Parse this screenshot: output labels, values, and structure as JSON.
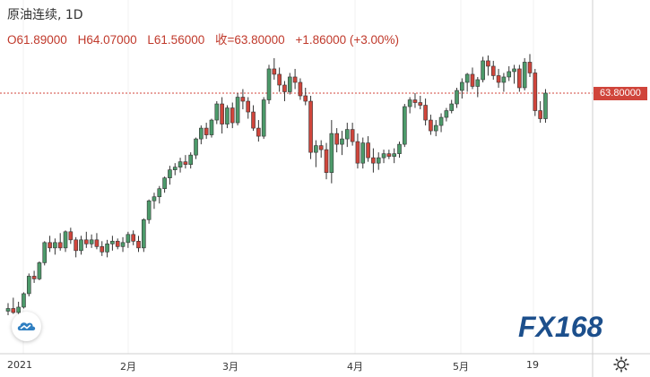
{
  "header": {
    "title": "原油连续, 1D",
    "open": "O61.89000",
    "high": "H64.07000",
    "low": "L61.56000",
    "close": "收=63.80000",
    "change": "+1.86000 (+3.00%)"
  },
  "price_tag": "63.80000",
  "logo_text": "FX168",
  "colors": {
    "up": "#4c9a6a",
    "down": "#d0453b",
    "price_line": "#d0453b"
  },
  "icons": {
    "settings": "gear-icon",
    "cloud": "cloud-icon"
  },
  "chart_data": {
    "type": "candlestick",
    "x_tick_labels": [
      "2021",
      "2月",
      "3月",
      "4月",
      "5月",
      "19"
    ],
    "last_price": 63.8,
    "ohlc": [
      [
        47.6,
        48.2,
        47.3,
        47.8
      ],
      [
        47.8,
        48.6,
        47.4,
        47.5
      ],
      [
        47.5,
        48.3,
        47.2,
        47.9
      ],
      [
        47.9,
        49.0,
        47.8,
        48.9
      ],
      [
        48.9,
        50.4,
        48.7,
        50.2
      ],
      [
        50.2,
        50.6,
        49.7,
        50.0
      ],
      [
        50.0,
        51.3,
        49.9,
        51.2
      ],
      [
        51.2,
        52.8,
        51.0,
        52.7
      ],
      [
        52.7,
        53.2,
        52.0,
        52.3
      ],
      [
        52.3,
        53.0,
        51.8,
        52.7
      ],
      [
        52.7,
        53.4,
        52.1,
        52.3
      ],
      [
        52.3,
        53.6,
        52.0,
        53.5
      ],
      [
        53.5,
        53.8,
        52.6,
        52.9
      ],
      [
        52.9,
        53.1,
        51.6,
        52.1
      ],
      [
        52.1,
        53.2,
        51.8,
        52.9
      ],
      [
        52.9,
        53.5,
        52.3,
        52.6
      ],
      [
        52.6,
        53.3,
        52.3,
        52.9
      ],
      [
        52.9,
        53.4,
        52.2,
        52.4
      ],
      [
        52.4,
        52.8,
        51.7,
        52.0
      ],
      [
        52.0,
        52.9,
        51.6,
        52.6
      ],
      [
        52.6,
        53.2,
        52.1,
        52.8
      ],
      [
        52.8,
        53.0,
        52.2,
        52.4
      ],
      [
        52.4,
        53.1,
        52.0,
        52.7
      ],
      [
        52.7,
        53.5,
        52.3,
        53.3
      ],
      [
        53.3,
        53.6,
        52.5,
        52.8
      ],
      [
        52.8,
        53.2,
        52.0,
        52.3
      ],
      [
        52.3,
        54.5,
        52.0,
        54.4
      ],
      [
        54.4,
        55.9,
        54.1,
        55.8
      ],
      [
        55.8,
        56.4,
        55.2,
        56.1
      ],
      [
        56.1,
        56.9,
        55.6,
        56.7
      ],
      [
        56.7,
        57.6,
        56.4,
        57.5
      ],
      [
        57.5,
        58.4,
        57.0,
        58.1
      ],
      [
        58.1,
        58.6,
        57.7,
        58.3
      ],
      [
        58.3,
        59.0,
        57.9,
        58.7
      ],
      [
        58.7,
        59.2,
        58.2,
        58.5
      ],
      [
        58.5,
        59.4,
        58.2,
        59.2
      ],
      [
        59.2,
        60.5,
        58.9,
        60.4
      ],
      [
        60.4,
        61.4,
        60.0,
        61.2
      ],
      [
        61.2,
        61.6,
        60.4,
        60.7
      ],
      [
        60.7,
        61.9,
        60.5,
        61.8
      ],
      [
        61.8,
        63.2,
        61.5,
        63.0
      ],
      [
        63.0,
        63.5,
        60.8,
        61.5
      ],
      [
        61.5,
        62.9,
        61.2,
        62.7
      ],
      [
        62.7,
        63.1,
        61.2,
        61.6
      ],
      [
        61.6,
        63.8,
        61.4,
        63.5
      ],
      [
        63.5,
        64.1,
        62.6,
        63.2
      ],
      [
        63.2,
        63.5,
        61.9,
        62.4
      ],
      [
        62.4,
        62.9,
        61.0,
        61.2
      ],
      [
        61.2,
        61.8,
        60.2,
        60.6
      ],
      [
        60.6,
        63.5,
        60.4,
        63.3
      ],
      [
        63.3,
        65.9,
        63.0,
        65.6
      ],
      [
        65.6,
        66.4,
        64.8,
        65.2
      ],
      [
        65.2,
        65.7,
        63.9,
        64.4
      ],
      [
        64.4,
        64.7,
        63.2,
        63.9
      ],
      [
        63.9,
        65.3,
        63.7,
        65.0
      ],
      [
        65.0,
        65.6,
        64.1,
        64.6
      ],
      [
        64.6,
        64.9,
        63.3,
        63.6
      ],
      [
        63.6,
        64.2,
        62.9,
        63.2
      ],
      [
        63.2,
        63.6,
        58.9,
        59.4
      ],
      [
        59.4,
        60.3,
        58.3,
        59.9
      ],
      [
        59.9,
        60.3,
        59.0,
        59.6
      ],
      [
        59.6,
        60.1,
        57.4,
        57.9
      ],
      [
        57.9,
        61.8,
        57.1,
        60.8
      ],
      [
        60.8,
        61.2,
        59.4,
        60.0
      ],
      [
        60.0,
        61.0,
        59.2,
        60.4
      ],
      [
        60.4,
        61.6,
        59.8,
        61.1
      ],
      [
        61.1,
        61.6,
        59.9,
        60.2
      ],
      [
        60.2,
        60.8,
        58.2,
        58.6
      ],
      [
        58.6,
        60.5,
        58.2,
        60.1
      ],
      [
        60.1,
        60.6,
        58.7,
        59.0
      ],
      [
        59.0,
        59.7,
        57.9,
        58.6
      ],
      [
        58.6,
        59.4,
        58.1,
        59.0
      ],
      [
        59.0,
        59.6,
        58.6,
        59.3
      ],
      [
        59.3,
        59.6,
        58.9,
        59.1
      ],
      [
        59.1,
        59.7,
        58.6,
        59.3
      ],
      [
        59.3,
        60.2,
        59.0,
        60.0
      ],
      [
        60.0,
        63.0,
        59.8,
        62.8
      ],
      [
        62.8,
        63.5,
        62.3,
        63.3
      ],
      [
        63.3,
        63.8,
        62.7,
        63.1
      ],
      [
        63.1,
        63.6,
        62.6,
        62.9
      ],
      [
        62.9,
        63.4,
        61.4,
        61.8
      ],
      [
        61.8,
        62.2,
        60.7,
        61.0
      ],
      [
        61.0,
        61.8,
        60.6,
        61.4
      ],
      [
        61.4,
        62.3,
        60.9,
        62.0
      ],
      [
        62.0,
        62.7,
        61.7,
        62.5
      ],
      [
        62.5,
        63.3,
        62.3,
        63.0
      ],
      [
        63.0,
        64.2,
        62.7,
        64.0
      ],
      [
        64.0,
        64.9,
        63.4,
        64.6
      ],
      [
        64.6,
        65.3,
        63.9,
        65.2
      ],
      [
        65.2,
        65.7,
        64.1,
        64.3
      ],
      [
        64.3,
        65.0,
        63.5,
        64.8
      ],
      [
        64.8,
        66.5,
        64.6,
        66.2
      ],
      [
        66.2,
        66.6,
        65.1,
        65.8
      ],
      [
        65.8,
        66.2,
        64.8,
        65.1
      ],
      [
        65.1,
        65.6,
        64.2,
        64.6
      ],
      [
        64.6,
        65.3,
        63.9,
        65.0
      ],
      [
        65.0,
        65.8,
        64.7,
        65.4
      ],
      [
        65.4,
        65.9,
        64.5,
        65.6
      ],
      [
        65.6,
        65.9,
        63.9,
        64.2
      ],
      [
        64.2,
        66.4,
        64.0,
        66.1
      ],
      [
        66.1,
        66.7,
        65.0,
        65.3
      ],
      [
        65.3,
        65.6,
        62.1,
        62.5
      ],
      [
        62.5,
        63.2,
        61.6,
        61.9
      ],
      [
        61.9,
        64.1,
        61.6,
        63.8
      ]
    ]
  }
}
